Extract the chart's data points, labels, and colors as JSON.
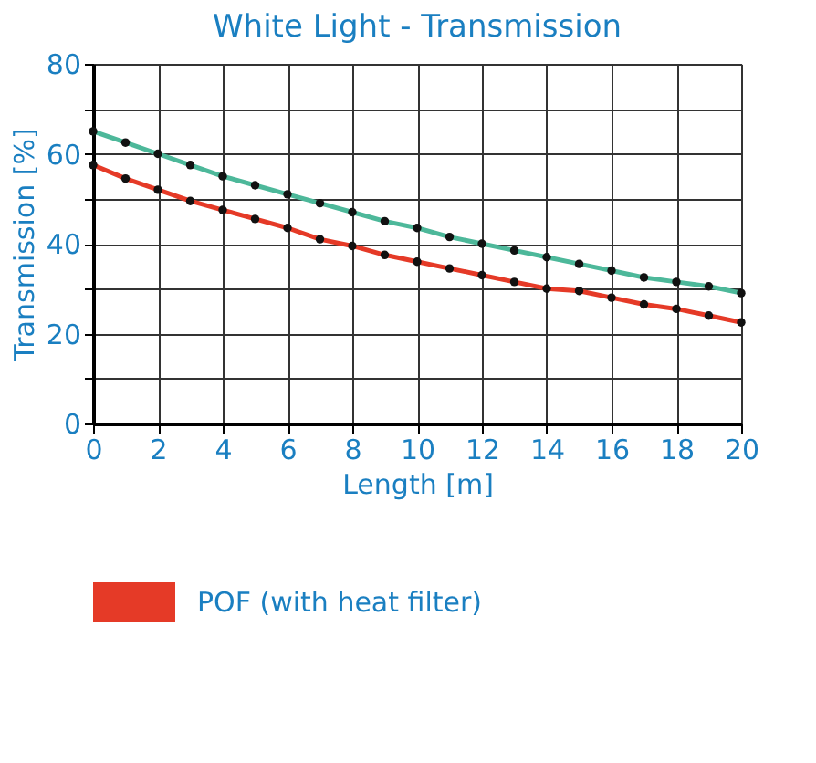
{
  "chart_data": {
    "type": "line",
    "title": "White Light - Transmission",
    "xlabel": "Length [m]",
    "ylabel": "Transmission [%]",
    "x": [
      0,
      1,
      2,
      3,
      4,
      5,
      6,
      7,
      8,
      9,
      10,
      11,
      12,
      13,
      14,
      15,
      16,
      17,
      18,
      19,
      20
    ],
    "series": [
      {
        "color": "#4db89a",
        "values": [
          65,
          62.5,
          60,
          57.5,
          55,
          53,
          51,
          49,
          47,
          45,
          43.5,
          41.5,
          40,
          38.5,
          37,
          35.5,
          34,
          32.5,
          31.5,
          30.5,
          29
        ]
      },
      {
        "name": "POF (with heat filter)",
        "color": "#e53a27",
        "values": [
          57.5,
          54.5,
          52,
          49.5,
          47.5,
          45.5,
          43.5,
          41,
          39.5,
          37.5,
          36,
          34.5,
          33,
          31.5,
          30,
          29.5,
          28,
          26.5,
          25.5,
          24,
          22.5
        ]
      }
    ],
    "xlim": [
      0,
      20
    ],
    "xticks": [
      0,
      2,
      4,
      6,
      8,
      10,
      12,
      14,
      16,
      18,
      20
    ],
    "ylim": [
      0,
      80
    ],
    "yticks": [
      0,
      {
        "value": 10,
        "label": null
      },
      20,
      {
        "value": 30,
        "label": null
      },
      40,
      {
        "value": 50,
        "label": null
      },
      60,
      {
        "value": 70,
        "label": null
      },
      80
    ],
    "grid": true,
    "legend": "bottom",
    "marker": "circle",
    "line_style": "solid"
  }
}
